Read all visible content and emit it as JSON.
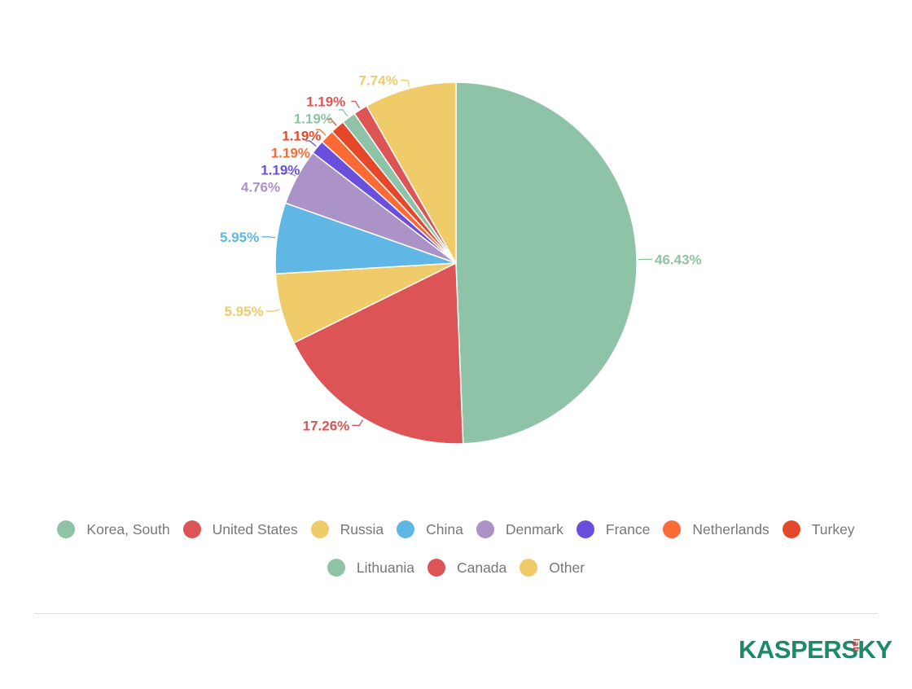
{
  "chart_data": {
    "type": "pie",
    "slices": [
      {
        "name": "Korea, South",
        "value": 46.43,
        "label": "46.43%",
        "color": "#8fc3a8"
      },
      {
        "name": "United States",
        "value": 17.26,
        "label": "17.26%",
        "color": "#dd5456"
      },
      {
        "name": "Russia",
        "value": 5.95,
        "label": "5.95%",
        "color": "#efcb6a"
      },
      {
        "name": "China",
        "value": 5.95,
        "label": "5.95%",
        "color": "#60b6e4"
      },
      {
        "name": "Denmark",
        "value": 4.76,
        "label": "4.76%",
        "color": "#ab93c8"
      },
      {
        "name": "France",
        "value": 1.19,
        "label": "1.19%",
        "color": "#6a4fdc"
      },
      {
        "name": "Netherlands",
        "value": 1.19,
        "label": "1.19%",
        "color": "#fc6b35"
      },
      {
        "name": "Turkey",
        "value": 1.19,
        "label": "1.19%",
        "color": "#e4472a"
      },
      {
        "name": "Lithuania",
        "value": 1.19,
        "label": "1.19%",
        "color": "#8fc3a8"
      },
      {
        "name": "Canada",
        "value": 1.19,
        "label": "1.19%",
        "color": "#dd5456"
      },
      {
        "name": "Other",
        "value": 7.74,
        "label": "7.74%",
        "color": "#efcb6a"
      }
    ],
    "direction": "clockwise",
    "start": "top",
    "legend_position": "bottom"
  },
  "legend": {
    "row1": [
      {
        "label": "Korea, South",
        "color": "#8fc3a8"
      },
      {
        "label": "United States",
        "color": "#dd5456"
      },
      {
        "label": "Russia",
        "color": "#efcb6a"
      },
      {
        "label": "China",
        "color": "#60b6e4"
      },
      {
        "label": "Denmark",
        "color": "#ab93c8"
      },
      {
        "label": "France",
        "color": "#6a4fdc"
      },
      {
        "label": "Netherlands",
        "color": "#fc6b35"
      },
      {
        "label": "Turkey",
        "color": "#e4472a"
      }
    ],
    "row2": [
      {
        "label": "Lithuania",
        "color": "#8fc3a8"
      },
      {
        "label": "Canada",
        "color": "#dd5456"
      },
      {
        "label": "Other",
        "color": "#efcb6a"
      }
    ]
  },
  "brand": {
    "word": "KASPERSKY",
    "sub": "lab",
    "color": "#1b8a6b",
    "accent": "#dd3b3b"
  }
}
